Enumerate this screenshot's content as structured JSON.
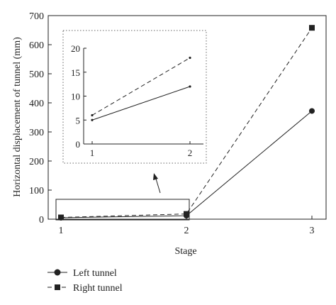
{
  "chart_data": [
    {
      "type": "line",
      "xlabel": "Stage",
      "ylabel": "Horizontal displacement of tunnel (mm)",
      "x": [
        1,
        2,
        3
      ],
      "xticks": [
        "1",
        "2",
        "3"
      ],
      "ylim": [
        0,
        700
      ],
      "yticks": [
        "0",
        "100",
        "200",
        "300",
        "400",
        "500",
        "600",
        "700"
      ],
      "series": [
        {
          "name": "Left tunnel",
          "values": [
            5,
            12,
            372
          ],
          "marker": "circle",
          "style": "solid",
          "color": "#222222"
        },
        {
          "name": "Right tunnel",
          "values": [
            6,
            18,
            658
          ],
          "marker": "square",
          "style": "dashed",
          "color": "#222222"
        }
      ],
      "legend": "bottom-left, below plot"
    },
    {
      "type": "line",
      "role": "inset zoom of stages 1-2",
      "x": [
        1,
        2
      ],
      "xticks": [
        "1",
        "2"
      ],
      "ylim": [
        0,
        20
      ],
      "yticks": [
        "0",
        "5",
        "10",
        "15",
        "20"
      ],
      "series": [
        {
          "name": "Left tunnel",
          "values": [
            5,
            12
          ],
          "style": "solid"
        },
        {
          "name": "Right tunnel",
          "values": [
            6,
            18
          ],
          "style": "dashed"
        }
      ]
    }
  ]
}
